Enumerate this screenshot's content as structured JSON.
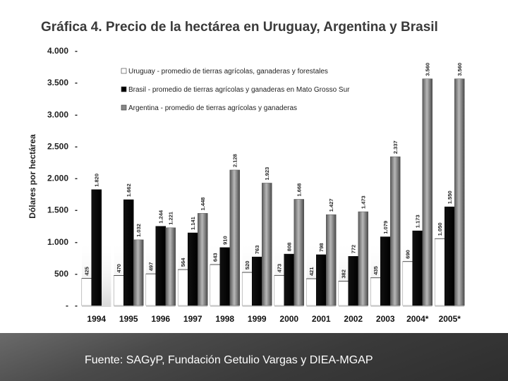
{
  "footer": {
    "source": "Fuente: SAGyP, Fundación Getulio Vargas y DIEA-MGAP"
  },
  "chart_data": {
    "type": "bar",
    "title": "Gráfica 4. Precio de la hectárea en Uruguay, Argentina y Brasil",
    "ylabel": "Dólares por hectárea",
    "xlabel": "",
    "ylim": [
      0,
      4000
    ],
    "yticks": [
      {
        "value": 0,
        "label": "-"
      },
      {
        "value": 500,
        "label": "500"
      },
      {
        "value": 1000,
        "label": "1.000"
      },
      {
        "value": 1500,
        "label": "1.500"
      },
      {
        "value": 2000,
        "label": "2.000"
      },
      {
        "value": 2500,
        "label": "2.500"
      },
      {
        "value": 3000,
        "label": "3.000"
      },
      {
        "value": 3500,
        "label": "3.500"
      },
      {
        "value": 4000,
        "label": "4.000"
      }
    ],
    "categories": [
      "1994",
      "1995",
      "1996",
      "1997",
      "1998",
      "1999",
      "2000",
      "2001",
      "2002",
      "2003",
      "2004*",
      "2005*"
    ],
    "series": [
      {
        "name": "Uruguay - promedio de tierras agrícolas, ganaderas y forestales",
        "color": "#ffffff",
        "values": [
          425,
          470,
          497,
          564,
          643,
          520,
          473,
          421,
          382,
          435,
          690,
          1050
        ],
        "labels": [
          "425",
          "470",
          "497",
          "564",
          "643",
          "520",
          "473",
          "421",
          "382",
          "435",
          "690",
          "1.050"
        ]
      },
      {
        "name": "Brasil - promedio de tierras agrícolas y ganaderas en Mato Grosso Sur",
        "color": "#000000",
        "values": [
          1820,
          1662,
          1244,
          1141,
          910,
          763,
          808,
          798,
          772,
          1079,
          1173,
          1550
        ],
        "labels": [
          "1.820",
          "1.662",
          "1.244",
          "1.141",
          "910",
          "763",
          "808",
          "798",
          "772",
          "1.079",
          "1.173",
          "1.550"
        ]
      },
      {
        "name": "Argentina - promedio de tierras agrícolas y ganaderas",
        "color": "#808080",
        "values": [
          null,
          1032,
          1221,
          1448,
          2128,
          1923,
          1668,
          1427,
          1473,
          2337,
          3560,
          3560
        ],
        "labels": [
          null,
          "1.032",
          "1.221",
          "1.448",
          "2.128",
          "1.923",
          "1.668",
          "1.427",
          "1.473",
          "2.337",
          "3.560",
          "3.560"
        ]
      }
    ],
    "legend_position": "top-left",
    "grid": false
  }
}
